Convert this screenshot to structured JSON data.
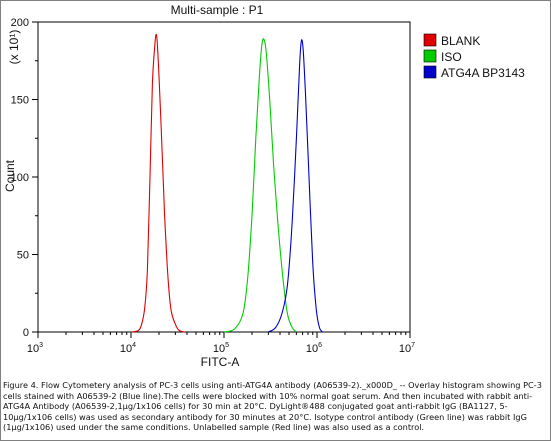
{
  "chart_data": {
    "type": "line",
    "title": "Multi-sample : P1",
    "xlabel": "FITC-A",
    "ylabel": "Count",
    "y_multiplier": "(x 10¹)",
    "x_scale": "log",
    "xlim": [
      1000,
      10000000
    ],
    "ylim": [
      0,
      200
    ],
    "x_ticks": [
      {
        "base": "10",
        "exp": "3"
      },
      {
        "base": "10",
        "exp": "4"
      },
      {
        "base": "10",
        "exp": "5"
      },
      {
        "base": "10",
        "exp": "6"
      },
      {
        "base": "10",
        "exp": "7"
      }
    ],
    "y_ticks": [
      "0",
      "50",
      "100",
      "150",
      "200"
    ],
    "y_tick_values": [
      0,
      50,
      100,
      150,
      200
    ],
    "legend_position": "top-right",
    "series": [
      {
        "name": "BLANK",
        "color": "#e00000",
        "points": [
          [
            10000,
            0
          ],
          [
            12000,
            1
          ],
          [
            13000,
            5
          ],
          [
            14000,
            15
          ],
          [
            15000,
            40
          ],
          [
            16000,
            100
          ],
          [
            17000,
            160
          ],
          [
            18000,
            184
          ],
          [
            18600,
            192
          ],
          [
            19200,
            186
          ],
          [
            20000,
            165
          ],
          [
            21500,
            120
          ],
          [
            23000,
            75
          ],
          [
            25000,
            35
          ],
          [
            27000,
            14
          ],
          [
            30000,
            5
          ],
          [
            33000,
            1
          ],
          [
            38000,
            0
          ]
        ]
      },
      {
        "name": "ISO",
        "color": "#00cc00",
        "points": [
          [
            100000,
            0
          ],
          [
            130000,
            2
          ],
          [
            160000,
            12
          ],
          [
            180000,
            35
          ],
          [
            200000,
            75
          ],
          [
            220000,
            125
          ],
          [
            240000,
            165
          ],
          [
            255000,
            185
          ],
          [
            268000,
            189
          ],
          [
            285000,
            180
          ],
          [
            310000,
            150
          ],
          [
            340000,
            110
          ],
          [
            380000,
            70
          ],
          [
            430000,
            35
          ],
          [
            480000,
            12
          ],
          [
            540000,
            3
          ],
          [
            600000,
            0
          ]
        ]
      },
      {
        "name": "ATG4A BP3143",
        "color": "#0000cc",
        "points": [
          [
            300000,
            0
          ],
          [
            360000,
            3
          ],
          [
            420000,
            12
          ],
          [
            480000,
            30
          ],
          [
            540000,
            70
          ],
          [
            600000,
            125
          ],
          [
            650000,
            172
          ],
          [
            680000,
            188
          ],
          [
            710000,
            182
          ],
          [
            750000,
            155
          ],
          [
            820000,
            100
          ],
          [
            900000,
            45
          ],
          [
            980000,
            15
          ],
          [
            1060000,
            3
          ],
          [
            1150000,
            0
          ]
        ]
      }
    ]
  },
  "caption": "Figure 4. Flow Cytometery analysis of PC-3 cells using anti-ATG4A antibody (A06539-2)._x000D_ -- Overlay histogram showing PC-3 cells stained with A06539-2 (Blue line).The cells were blocked with 10% normal goat serum. And then incubated with rabbit anti-ATG4A Antibody (A06539-2,1μg/1x106 cells) for 30 min at 20°C. DyLight®488 conjugated goat anti-rabbit IgG (BA1127, 5-10μg/1x106 cells) was used as secondary antibody for 30 minutes at 20°C. Isotype control antibody (Green line) was rabbit IgG (1μg/1x106) used under the same conditions. Unlabelled sample (Red line) was also used as a control."
}
